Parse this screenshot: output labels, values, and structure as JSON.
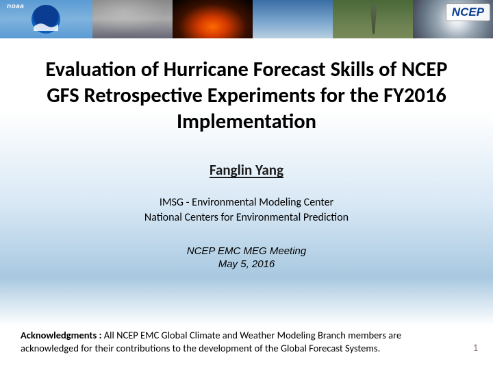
{
  "banner": {
    "noaa_label": "noaa",
    "ncep_label": "NCEP",
    "panels": [
      "noaa",
      "wave",
      "volcano",
      "sky",
      "tornado",
      "hurricane"
    ]
  },
  "title": "Evaluation of Hurricane Forecast Skills of NCEP GFS Retrospective Experiments for the FY2016 Implementation",
  "author": "Fanglin Yang",
  "affiliation_line1": "IMSG - Environmental Modeling Center",
  "affiliation_line2": "National Centers for Environmental Prediction",
  "meeting_line1": "NCEP EMC MEG Meeting",
  "meeting_line2": "May 5, 2016",
  "ack_label": "Acknowledgments :",
  "ack_text": " All NCEP EMC Global Climate and Weather Modeling Branch members are acknowledged for their contributions to the development of the Global Forecast Systems.",
  "page_number": "1",
  "colors": {
    "title_color": "#000000",
    "gradient_top": "#ffffff",
    "gradient_mid": "#a8c8e0",
    "ncep_text": "#0a3d91",
    "page_num": "#8a6d6d"
  },
  "fonts": {
    "title_size_pt": 23,
    "author_size_pt": 16,
    "affil_size_pt": 12,
    "meeting_size_pt": 11,
    "ack_size_pt": 11
  }
}
